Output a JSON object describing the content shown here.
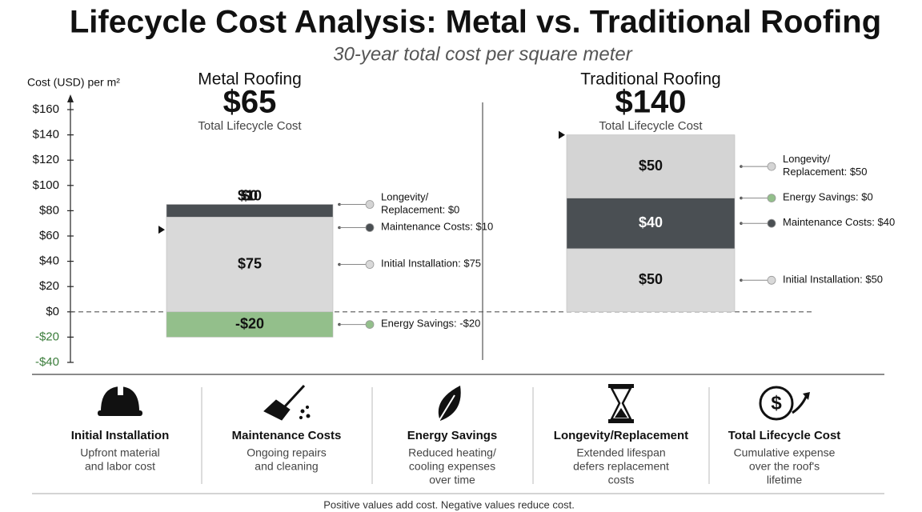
{
  "chart_data": {
    "type": "bar",
    "stacked": true,
    "title": "Lifecycle Cost Analysis: Metal vs. Traditional Roofing",
    "subtitle": "30-year total cost per square meter",
    "y_label": "Cost (USD) per m²",
    "categories": [
      "Metal Roofing",
      "Traditional Roofing"
    ],
    "total_caption": "Total Lifecycle Cost",
    "totals": [
      {
        "value": 65,
        "label": "$65"
      },
      {
        "value": 140,
        "label": "$140"
      }
    ],
    "series": [
      {
        "name": "Initial Installation",
        "color": "#d9d9d9",
        "values": [
          75,
          50
        ],
        "value_labels": [
          "$75",
          "$50"
        ],
        "callouts": [
          [
            "Initial Installation: $75"
          ],
          [
            "Initial Installation: $50"
          ]
        ]
      },
      {
        "name": "Maintenance Costs",
        "color": "#4a4f53",
        "values": [
          10,
          40
        ],
        "value_labels": [
          "$10",
          "$40"
        ],
        "callouts": [
          [
            "Maintenance Costs: $10"
          ],
          [
            "Maintenance Costs: $40"
          ]
        ]
      },
      {
        "name": "Energy Savings",
        "color": "#93bf8b",
        "values": [
          -20,
          0
        ],
        "value_labels": [
          "-$20",
          "$0"
        ],
        "callouts": [
          [
            "Energy Savings: -$20"
          ],
          [
            "Energy Savings: $0"
          ]
        ]
      },
      {
        "name": "Longevity/Replacement",
        "color": "#d4d4d4",
        "values": [
          0,
          50
        ],
        "value_labels": [
          "$0",
          "$50"
        ],
        "callouts": [
          [
            "Longevity/",
            "Replacement: $0"
          ],
          [
            "Longevity/",
            "Replacement: $50"
          ]
        ]
      }
    ],
    "ylim": [
      -40,
      160
    ],
    "yticks": [
      {
        "value": 160,
        "label": "$160"
      },
      {
        "value": 140,
        "label": "$140"
      },
      {
        "value": 120,
        "label": "$120"
      },
      {
        "value": 100,
        "label": "$100"
      },
      {
        "value": 80,
        "label": "$80"
      },
      {
        "value": 60,
        "label": "$60"
      },
      {
        "value": 40,
        "label": "$40"
      },
      {
        "value": 20,
        "label": "$20"
      },
      {
        "value": 0,
        "label": "$0"
      },
      {
        "value": -20,
        "label": "-$20"
      },
      {
        "value": -40,
        "label": "-$40"
      }
    ],
    "negative_color": "#3b7d3b"
  },
  "key_cards": [
    {
      "title": "Initial Installation",
      "description": [
        "Upfront material",
        "and labor cost"
      ]
    },
    {
      "title": "Maintenance Costs",
      "description": [
        "Ongoing repairs",
        "and cleaning"
      ]
    },
    {
      "title": "Energy Savings",
      "description": [
        "Reduced heating/",
        "cooling expenses",
        "over time"
      ]
    },
    {
      "title": "Longevity/Replacement",
      "description": [
        "Extended lifespan",
        "defers replacement",
        "costs"
      ]
    },
    {
      "title": "Total Lifecycle Cost",
      "description": [
        "Cumulative expense",
        "over the roof's",
        "lifetime"
      ]
    }
  ],
  "footnote": "Positive values add cost. Negative values reduce cost."
}
